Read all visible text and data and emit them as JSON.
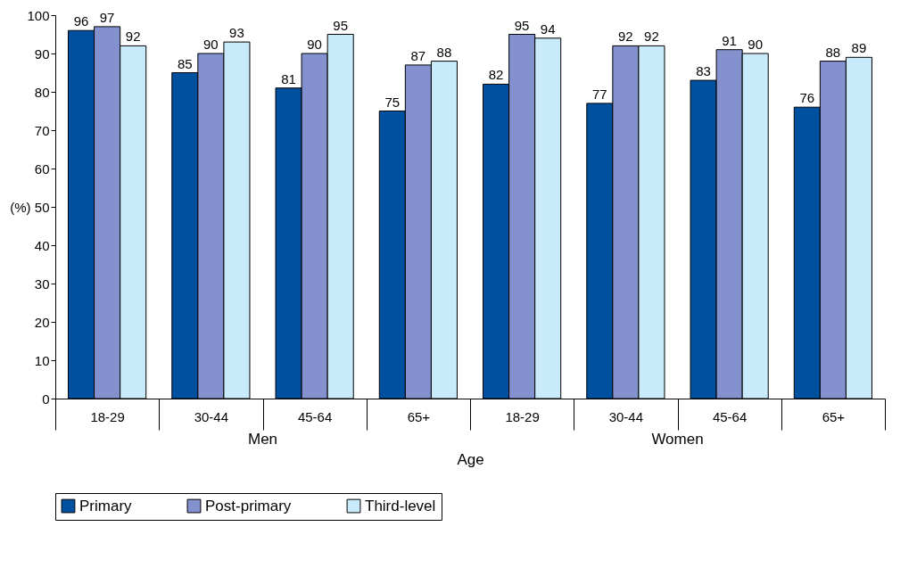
{
  "chart_data": {
    "type": "bar",
    "ylabel": "(%)",
    "xlabel": "Age",
    "categories": [
      "18-29",
      "30-44",
      "45-64",
      "65+",
      "18-29",
      "30-44",
      "45-64",
      "65+"
    ],
    "annotations": [
      "Men",
      "Women"
    ],
    "series": [
      {
        "name": "Primary",
        "color": "#0050a0",
        "values": [
          96,
          85,
          81,
          75,
          82,
          77,
          83,
          76
        ]
      },
      {
        "name": "Post-primary",
        "color": "#8391cf",
        "values": [
          97,
          90,
          90,
          87,
          95,
          92,
          91,
          88
        ]
      },
      {
        "name": "Third-level",
        "color": "#c9eafa",
        "values": [
          92,
          93,
          95,
          88,
          94,
          92,
          90,
          89
        ]
      }
    ],
    "ylim": [
      0,
      100
    ],
    "yticks": [
      0,
      10,
      20,
      30,
      40,
      50,
      60,
      70,
      80,
      90,
      100
    ],
    "data_labels": true,
    "legend": "bottom",
    "grid": false
  }
}
